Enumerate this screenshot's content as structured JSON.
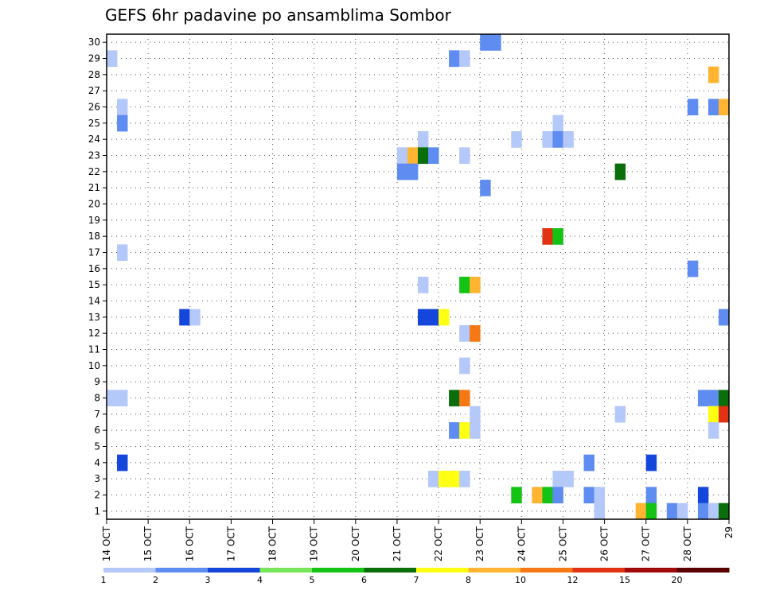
{
  "chart_data": {
    "type": "heatmap",
    "title": "GEFS 6hr padavine po ansamblima Sombor",
    "xlabel": "",
    "ylabel": "",
    "x_ticks": [
      "14 OCT",
      "15 OCT",
      "16 OCT",
      "17 OCT",
      "18 OCT",
      "19 OCT",
      "20 OCT",
      "21 OCT",
      "22 OCT",
      "23 OCT",
      "24 OCT",
      "25 OCT",
      "26 OCT",
      "27 OCT",
      "28 OCT",
      "29"
    ],
    "y_ticks": [
      1,
      2,
      3,
      4,
      5,
      6,
      7,
      8,
      9,
      10,
      11,
      12,
      13,
      14,
      15,
      16,
      17,
      18,
      19,
      20,
      21,
      22,
      23,
      24,
      25,
      26,
      27,
      28,
      29,
      30
    ],
    "xlim": [
      0,
      60
    ],
    "ylim": [
      0.5,
      30.5
    ],
    "grid": true,
    "colorbar": {
      "levels": [
        1,
        2,
        3,
        4,
        5,
        6,
        7,
        8,
        10,
        12,
        15,
        20
      ],
      "colors": [
        "#b4c8fa",
        "#5f8cf0",
        "#1446dc",
        "#78e65a",
        "#14c314",
        "#0a6e0a",
        "#ffff14",
        "#ffb432",
        "#f57814",
        "#e13214",
        "#a00a0a",
        "#5a0000"
      ]
    },
    "series": [
      {
        "x": 0,
        "y": 29,
        "v": 1
      },
      {
        "x": 0,
        "y": 8,
        "v": 1
      },
      {
        "x": 1,
        "y": 26,
        "v": 1
      },
      {
        "x": 1,
        "y": 25,
        "v": 2
      },
      {
        "x": 1,
        "y": 17,
        "v": 1
      },
      {
        "x": 1,
        "y": 8,
        "v": 1
      },
      {
        "x": 1,
        "y": 4,
        "v": 3
      },
      {
        "x": 7,
        "y": 13,
        "v": 3
      },
      {
        "x": 8,
        "y": 13,
        "v": 1
      },
      {
        "x": 28,
        "y": 23,
        "v": 1
      },
      {
        "x": 28,
        "y": 22,
        "v": 2
      },
      {
        "x": 29,
        "y": 23,
        "v": 8
      },
      {
        "x": 29,
        "y": 22,
        "v": 2
      },
      {
        "x": 30,
        "y": 24,
        "v": 1
      },
      {
        "x": 30,
        "y": 23,
        "v": 6
      },
      {
        "x": 30,
        "y": 15,
        "v": 1
      },
      {
        "x": 30,
        "y": 13,
        "v": 3
      },
      {
        "x": 31,
        "y": 23,
        "v": 2
      },
      {
        "x": 31,
        "y": 13,
        "v": 3
      },
      {
        "x": 31,
        "y": 3,
        "v": 1
      },
      {
        "x": 32,
        "y": 13,
        "v": 7
      },
      {
        "x": 32,
        "y": 3,
        "v": 7
      },
      {
        "x": 33,
        "y": 29,
        "v": 2
      },
      {
        "x": 33,
        "y": 8,
        "v": 6
      },
      {
        "x": 33,
        "y": 6,
        "v": 2
      },
      {
        "x": 33,
        "y": 3,
        "v": 7
      },
      {
        "x": 34,
        "y": 29,
        "v": 1
      },
      {
        "x": 34,
        "y": 23,
        "v": 1
      },
      {
        "x": 34,
        "y": 15,
        "v": 5
      },
      {
        "x": 34,
        "y": 12,
        "v": 1
      },
      {
        "x": 34,
        "y": 10,
        "v": 1
      },
      {
        "x": 34,
        "y": 8,
        "v": 10
      },
      {
        "x": 34,
        "y": 6,
        "v": 7
      },
      {
        "x": 34,
        "y": 3,
        "v": 1
      },
      {
        "x": 35,
        "y": 15,
        "v": 8
      },
      {
        "x": 35,
        "y": 12,
        "v": 10
      },
      {
        "x": 35,
        "y": 7,
        "v": 1
      },
      {
        "x": 35,
        "y": 6,
        "v": 1
      },
      {
        "x": 36,
        "y": 30,
        "v": 2
      },
      {
        "x": 36,
        "y": 21,
        "v": 2
      },
      {
        "x": 37,
        "y": 30,
        "v": 2
      },
      {
        "x": 39,
        "y": 24,
        "v": 1
      },
      {
        "x": 39,
        "y": 2,
        "v": 5
      },
      {
        "x": 41,
        "y": 2,
        "v": 8
      },
      {
        "x": 42,
        "y": 24,
        "v": 1
      },
      {
        "x": 42,
        "y": 18,
        "v": 12
      },
      {
        "x": 42,
        "y": 2,
        "v": 5
      },
      {
        "x": 43,
        "y": 25,
        "v": 1
      },
      {
        "x": 43,
        "y": 24,
        "v": 2
      },
      {
        "x": 43,
        "y": 18,
        "v": 5
      },
      {
        "x": 43,
        "y": 3,
        "v": 1
      },
      {
        "x": 43,
        "y": 2,
        "v": 2
      },
      {
        "x": 44,
        "y": 24,
        "v": 1
      },
      {
        "x": 44,
        "y": 3,
        "v": 1
      },
      {
        "x": 46,
        "y": 4,
        "v": 2
      },
      {
        "x": 46,
        "y": 2,
        "v": 2
      },
      {
        "x": 47,
        "y": 2,
        "v": 1
      },
      {
        "x": 47,
        "y": 1,
        "v": 1
      },
      {
        "x": 49,
        "y": 22,
        "v": 6
      },
      {
        "x": 49,
        "y": 7,
        "v": 1
      },
      {
        "x": 51,
        "y": 1,
        "v": 8
      },
      {
        "x": 52,
        "y": 4,
        "v": 3
      },
      {
        "x": 52,
        "y": 2,
        "v": 2
      },
      {
        "x": 52,
        "y": 1,
        "v": 5
      },
      {
        "x": 54,
        "y": 1,
        "v": 2
      },
      {
        "x": 55,
        "y": 1,
        "v": 1
      },
      {
        "x": 56,
        "y": 26,
        "v": 2
      },
      {
        "x": 56,
        "y": 16,
        "v": 2
      },
      {
        "x": 57,
        "y": 8,
        "v": 2
      },
      {
        "x": 57,
        "y": 2,
        "v": 3
      },
      {
        "x": 57,
        "y": 1,
        "v": 2
      },
      {
        "x": 58,
        "y": 28,
        "v": 8
      },
      {
        "x": 58,
        "y": 26,
        "v": 2
      },
      {
        "x": 58,
        "y": 8,
        "v": 2
      },
      {
        "x": 58,
        "y": 7,
        "v": 7
      },
      {
        "x": 58,
        "y": 6,
        "v": 1
      },
      {
        "x": 58,
        "y": 1,
        "v": 1
      },
      {
        "x": 59,
        "y": 26,
        "v": 8
      },
      {
        "x": 59,
        "y": 13,
        "v": 2
      },
      {
        "x": 59,
        "y": 8,
        "v": 6
      },
      {
        "x": 59,
        "y": 7,
        "v": 12
      },
      {
        "x": 59,
        "y": 1,
        "v": 6
      }
    ]
  }
}
